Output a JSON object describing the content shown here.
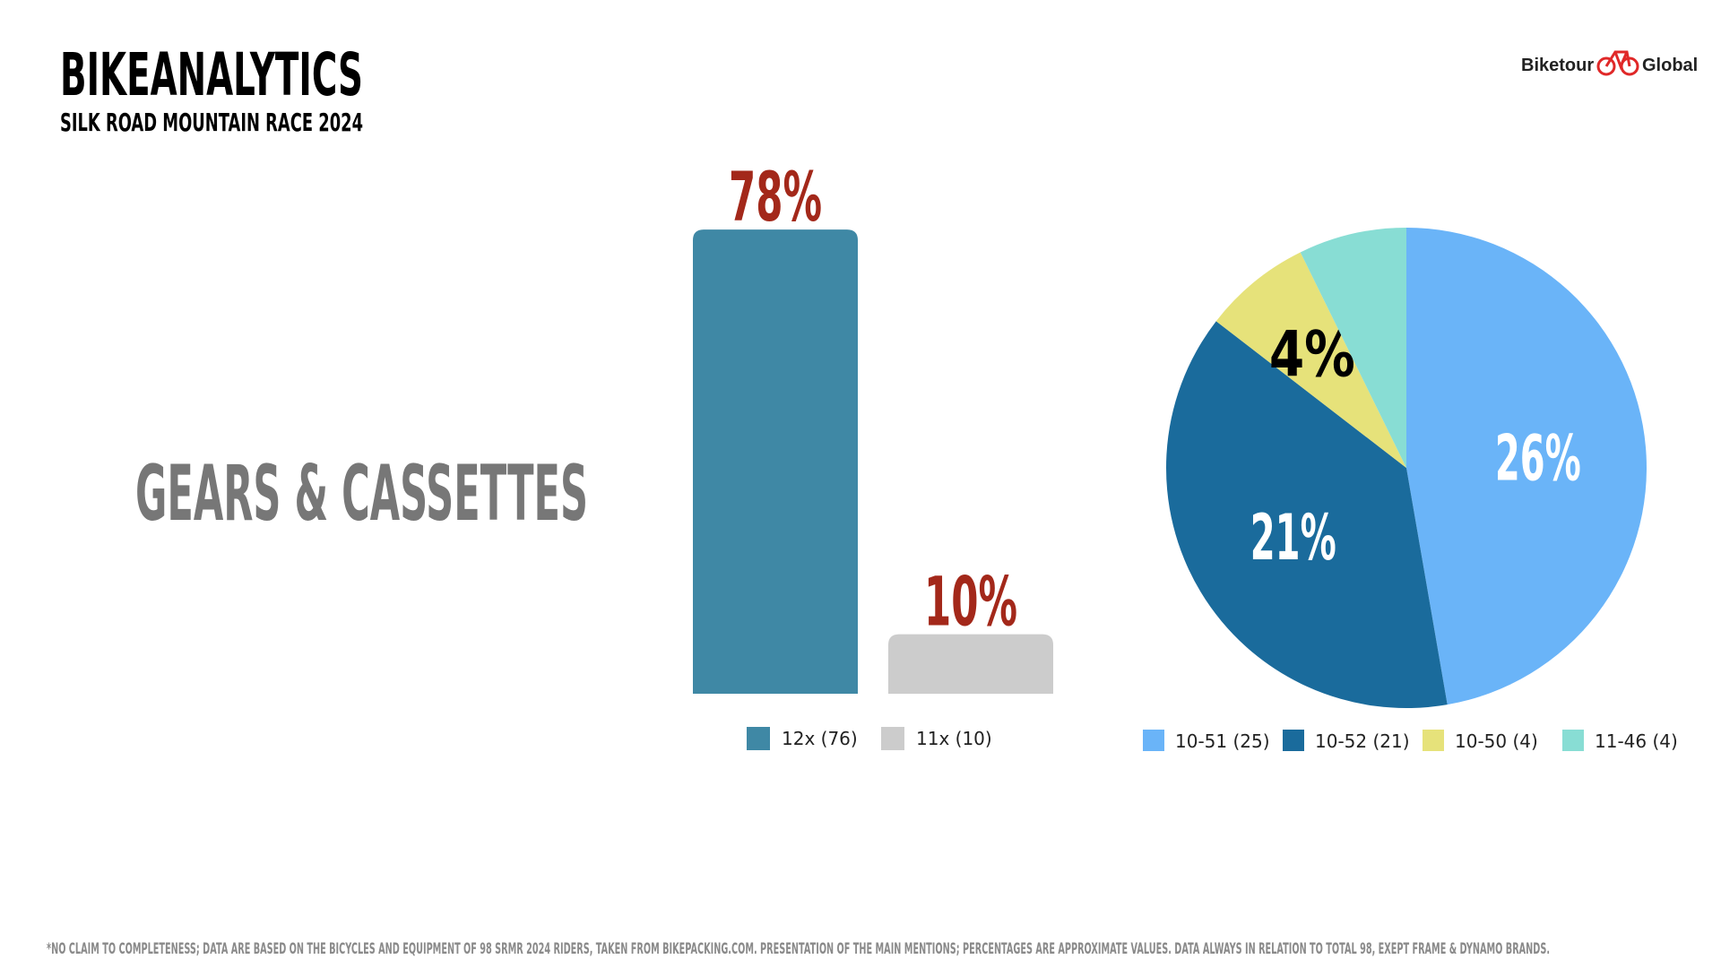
{
  "header": {
    "title": "BIKEANALYTICS",
    "subtitle": "SILK ROAD MOUNTAIN RACE 2024",
    "logo_left": "Biketour",
    "logo_right": "Global"
  },
  "section_title": "GEARS & CASSETTES",
  "chart_data": [
    {
      "type": "bar",
      "series": [
        {
          "name": "12x (76)",
          "color": "#3f88a5",
          "values": [
            78
          ],
          "value_labels": [
            "78%"
          ]
        },
        {
          "name": "11x (10)",
          "color": "#cccccc",
          "values": [
            10
          ],
          "value_labels": [
            "10%"
          ]
        }
      ]
    },
    {
      "type": "pie",
      "categories": [
        "10-51 (25)",
        "10-52 (21)",
        "10-50 (4)",
        "11-46 (4)"
      ],
      "values": [
        26,
        21,
        4,
        4
      ],
      "value_labels": [
        "26%",
        "21%",
        "4%",
        null
      ],
      "colors": [
        "#6ab4f8",
        "#1a6b9c",
        "#e6e27a",
        "#88ddd4"
      ],
      "label_colors": [
        "#ffffff",
        "#ffffff",
        "#000000",
        "#000000"
      ]
    }
  ],
  "footnote": "*NO CLAIM TO COMPLETENESS; DATA ARE BASED ON THE BICYCLES AND EQUIPMENT OF 98 SRMR 2024 RIDERS, TAKEN FROM BIKEPACKING.COM. PRESENTATION OF THE MAIN MENTIONS; PERCENTAGES ARE APPROXIMATE VALUES. DATA ALWAYS IN RELATION TO TOTAL 98, EXEPT FRAME & DYNAMO BRANDS."
}
